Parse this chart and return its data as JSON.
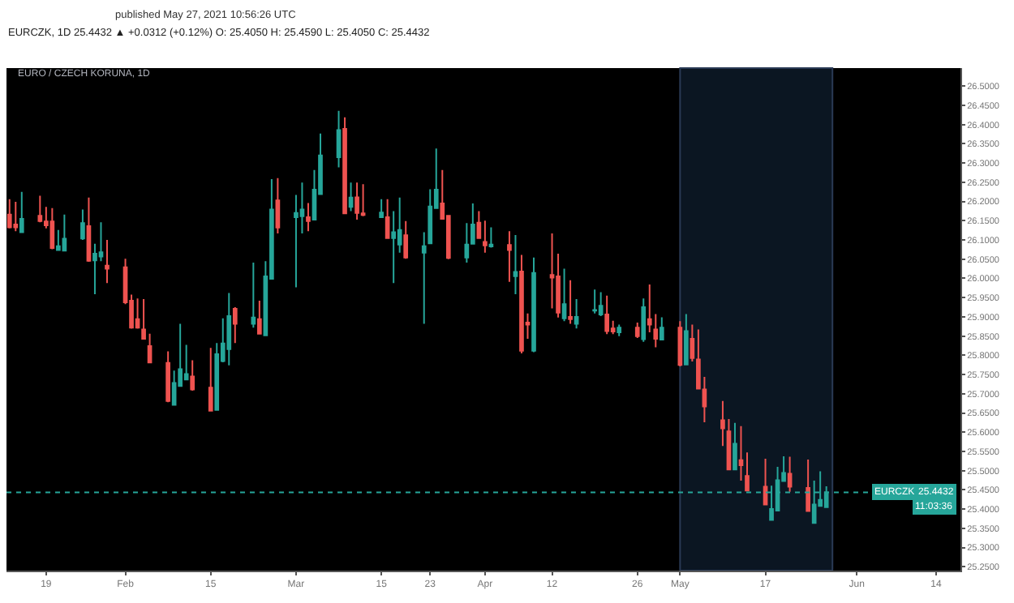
{
  "chart_data": {
    "type": "candlestick",
    "title": "EURO / CZECH KORUNA, 1D",
    "x": [
      "2021-01-13",
      "2021-01-14",
      "2021-01-15",
      "2021-01-18",
      "2021-01-19",
      "2021-01-20",
      "2021-01-21",
      "2021-01-22",
      "2021-01-25",
      "2021-01-26",
      "2021-01-27",
      "2021-01-28",
      "2021-01-29",
      "2021-02-01",
      "2021-02-02",
      "2021-02-03",
      "2021-02-04",
      "2021-02-05",
      "2021-02-08",
      "2021-02-09",
      "2021-02-10",
      "2021-02-11",
      "2021-02-12",
      "2021-02-15",
      "2021-02-16",
      "2021-02-17",
      "2021-02-18",
      "2021-02-19",
      "2021-02-22",
      "2021-02-23",
      "2021-02-24",
      "2021-02-25",
      "2021-02-26",
      "2021-03-01",
      "2021-03-02",
      "2021-03-03",
      "2021-03-04",
      "2021-03-05",
      "2021-03-08",
      "2021-03-09",
      "2021-03-10",
      "2021-03-11",
      "2021-03-12",
      "2021-03-15",
      "2021-03-16",
      "2021-03-17",
      "2021-03-18",
      "2021-03-19",
      "2021-03-22",
      "2021-03-23",
      "2021-03-24",
      "2021-03-25",
      "2021-03-26",
      "2021-03-29",
      "2021-03-30",
      "2021-03-31",
      "2021-04-01",
      "2021-04-02",
      "2021-04-05",
      "2021-04-06",
      "2021-04-07",
      "2021-04-08",
      "2021-04-09",
      "2021-04-12",
      "2021-04-13",
      "2021-04-14",
      "2021-04-15",
      "2021-04-16",
      "2021-04-19",
      "2021-04-20",
      "2021-04-21",
      "2021-04-22",
      "2021-04-23",
      "2021-04-26",
      "2021-04-27",
      "2021-04-28",
      "2021-04-29",
      "2021-04-30",
      "2021-05-03",
      "2021-05-04",
      "2021-05-05",
      "2021-05-06",
      "2021-05-07",
      "2021-05-10",
      "2021-05-11",
      "2021-05-12",
      "2021-05-13",
      "2021-05-14",
      "2021-05-17",
      "2021-05-18",
      "2021-05-19",
      "2021-05-20",
      "2021-05-21",
      "2021-05-24",
      "2021-05-25",
      "2021-05-26",
      "2021-05-27"
    ],
    "ohlc": [
      [
        26.166,
        26.206,
        26.13,
        26.133
      ],
      [
        26.14,
        26.199,
        26.123,
        26.133
      ],
      [
        26.12,
        26.225,
        26.12,
        26.155
      ],
      [
        26.163,
        26.215,
        26.146,
        26.149
      ],
      [
        26.148,
        26.186,
        26.13,
        26.138
      ],
      [
        26.148,
        26.183,
        26.076,
        26.079
      ],
      [
        26.074,
        26.126,
        26.074,
        26.084
      ],
      [
        26.072,
        26.166,
        26.072,
        26.103
      ],
      [
        26.104,
        26.179,
        26.1,
        26.144
      ],
      [
        26.136,
        26.21,
        26.043,
        26.046
      ],
      [
        26.047,
        26.09,
        25.959,
        26.064
      ],
      [
        26.057,
        26.146,
        26.045,
        26.068
      ],
      [
        26.033,
        26.1,
        25.988,
        26.025
      ],
      [
        26.029,
        26.051,
        25.933,
        25.938
      ],
      [
        25.942,
        25.958,
        25.869,
        25.872
      ],
      [
        25.894,
        25.948,
        25.869,
        25.872
      ],
      [
        25.867,
        25.946,
        25.843,
        25.843
      ],
      [
        25.824,
        25.856,
        25.781,
        25.781
      ],
      [
        25.78,
        25.81,
        25.678,
        25.681
      ],
      [
        25.671,
        25.76,
        25.671,
        25.728
      ],
      [
        25.72,
        25.882,
        25.72,
        25.764
      ],
      [
        25.737,
        25.827,
        25.735,
        25.751
      ],
      [
        25.745,
        25.787,
        25.708,
        25.711
      ],
      [
        25.716,
        25.819,
        25.656,
        25.656
      ],
      [
        25.658,
        25.832,
        25.656,
        25.803
      ],
      [
        25.785,
        25.896,
        25.782,
        25.831
      ],
      [
        25.816,
        25.962,
        25.774,
        25.902
      ],
      [
        25.921,
        25.925,
        25.832,
        25.882
      ],
      [
        25.882,
        26.041,
        25.872,
        25.898
      ],
      [
        25.894,
        25.942,
        25.856,
        25.856
      ],
      [
        25.852,
        26.045,
        25.852,
        26.005
      ],
      [
        25.999,
        26.258,
        25.999,
        26.179
      ],
      [
        26.203,
        26.261,
        26.117,
        26.132
      ],
      [
        26.159,
        26.217,
        25.977,
        26.17
      ],
      [
        26.162,
        26.249,
        26.117,
        26.179
      ],
      [
        26.159,
        26.196,
        26.123,
        26.149
      ],
      [
        26.153,
        26.282,
        26.153,
        26.231
      ],
      [
        26.219,
        26.377,
        26.219,
        26.32
      ],
      [
        26.315,
        26.436,
        26.289,
        26.386
      ],
      [
        26.389,
        26.419,
        26.169,
        26.169
      ],
      [
        26.186,
        26.249,
        26.175,
        26.21
      ],
      [
        26.211,
        26.249,
        26.153,
        26.17
      ],
      [
        26.169,
        26.245,
        26.162,
        26.165
      ],
      [
        26.159,
        26.206,
        26.159,
        26.171
      ],
      [
        26.159,
        26.206,
        26.103,
        26.105
      ],
      [
        26.105,
        26.175,
        25.988,
        26.12
      ],
      [
        26.088,
        26.21,
        26.067,
        26.126
      ],
      [
        26.112,
        26.149,
        26.051,
        26.054
      ],
      [
        26.067,
        26.12,
        25.882,
        26.084
      ],
      [
        26.091,
        26.232,
        26.091,
        26.187
      ],
      [
        26.183,
        26.338,
        26.183,
        26.231
      ],
      [
        26.195,
        26.282,
        26.153,
        26.155
      ],
      [
        26.163,
        26.163,
        26.05,
        26.053
      ],
      [
        26.054,
        26.144,
        26.041,
        26.088
      ],
      [
        26.09,
        26.195,
        26.09,
        26.14
      ],
      [
        26.145,
        26.175,
        26.104,
        26.105
      ],
      [
        26.095,
        26.15,
        26.067,
        26.086
      ],
      [
        26.083,
        26.133,
        26.08,
        26.088
      ],
      [
        26.087,
        26.123,
        25.991,
        26.074
      ],
      [
        26.006,
        26.113,
        25.959,
        26.017
      ],
      [
        26.018,
        26.061,
        25.805,
        25.812
      ],
      [
        25.885,
        25.909,
        25.843,
        25.88
      ],
      [
        25.812,
        26.054,
        25.808,
        26.014
      ],
      [
        26.009,
        26.117,
        25.922,
        26.002
      ],
      [
        26.005,
        26.064,
        25.898,
        25.911
      ],
      [
        25.896,
        26.025,
        25.889,
        25.933
      ],
      [
        25.9,
        25.995,
        25.882,
        25.894
      ],
      [
        25.882,
        25.946,
        25.87,
        25.9
      ],
      [
        25.916,
        25.971,
        25.909,
        25.918
      ],
      [
        25.906,
        25.964,
        25.902,
        25.929
      ],
      [
        25.906,
        25.955,
        25.855,
        25.863
      ],
      [
        25.87,
        25.89,
        25.855,
        25.862
      ],
      [
        25.86,
        25.88,
        25.85,
        25.872
      ],
      [
        25.872,
        25.885,
        25.845,
        25.85
      ],
      [
        25.842,
        25.948,
        25.835,
        25.925
      ],
      [
        25.894,
        25.984,
        25.86,
        25.88
      ],
      [
        25.867,
        25.907,
        25.821,
        25.843
      ],
      [
        25.841,
        25.899,
        25.841,
        25.872
      ],
      [
        25.872,
        25.889,
        25.771,
        25.775
      ],
      [
        25.776,
        25.907,
        25.776,
        25.863
      ],
      [
        25.843,
        25.88,
        25.784,
        25.793
      ],
      [
        25.789,
        25.867,
        25.713,
        25.713
      ],
      [
        25.711,
        25.744,
        25.626,
        25.667
      ],
      [
        25.631,
        25.681,
        25.564,
        25.61
      ],
      [
        25.602,
        25.634,
        25.503,
        25.503
      ],
      [
        25.503,
        25.624,
        25.503,
        25.57
      ],
      [
        25.527,
        25.616,
        25.474,
        25.514
      ],
      [
        25.486,
        25.547,
        25.448,
        25.448
      ],
      [
        25.458,
        25.531,
        25.412,
        25.412
      ],
      [
        25.372,
        25.461,
        25.372,
        25.4
      ],
      [
        25.396,
        25.51,
        25.396,
        25.475
      ],
      [
        25.473,
        25.537,
        25.473,
        25.494
      ],
      [
        25.492,
        25.536,
        25.445,
        25.458
      ],
      [
        25.455,
        25.529,
        25.395,
        25.395
      ],
      [
        25.364,
        25.474,
        25.364,
        25.412
      ],
      [
        25.408,
        25.498,
        25.408,
        25.424
      ],
      [
        25.405,
        25.459,
        25.405,
        25.4432
      ]
    ],
    "colors": [
      "#ef5350",
      "#ef5350",
      "#26a69a",
      "#ef5350",
      "#ef5350",
      "#ef5350",
      "#26a69a",
      "#26a69a",
      "#26a69a",
      "#ef5350",
      "#26a69a",
      "#26a69a",
      "#ef5350",
      "#ef5350",
      "#ef5350",
      "#ef5350",
      "#ef5350",
      "#ef5350",
      "#ef5350",
      "#26a69a",
      "#26a69a",
      "#26a69a",
      "#ef5350",
      "#ef5350",
      "#26a69a",
      "#26a69a",
      "#26a69a",
      "#ef5350",
      "#26a69a",
      "#ef5350",
      "#26a69a",
      "#26a69a",
      "#ef5350",
      "#26a69a",
      "#26a69a",
      "#ef5350",
      "#26a69a",
      "#26a69a",
      "#26a69a",
      "#ef5350",
      "#26a69a",
      "#ef5350",
      "#ef5350",
      "#26a69a",
      "#ef5350",
      "#26a69a",
      "#26a69a",
      "#ef5350",
      "#26a69a",
      "#26a69a",
      "#26a69a",
      "#ef5350",
      "#ef5350",
      "#26a69a",
      "#26a69a",
      "#ef5350",
      "#ef5350",
      "#26a69a",
      "#ef5350",
      "#26a69a",
      "#ef5350",
      "#ef5350",
      "#26a69a",
      "#ef5350",
      "#ef5350",
      "#26a69a",
      "#ef5350",
      "#26a69a",
      "#26a69a",
      "#26a69a",
      "#ef5350",
      "#ef5350",
      "#26a69a",
      "#ef5350",
      "#26a69a",
      "#ef5350",
      "#ef5350",
      "#26a69a",
      "#ef5350",
      "#26a69a",
      "#ef5350",
      "#ef5350",
      "#ef5350",
      "#ef5350",
      "#ef5350",
      "#26a69a",
      "#ef5350",
      "#ef5350",
      "#ef5350",
      "#26a69a",
      "#26a69a",
      "#26a69a",
      "#ef5350",
      "#ef5350",
      "#26a69a",
      "#26a69a",
      "#26a69a"
    ],
    "xlim": [
      "2021-01-12T12:00",
      "2021-06-18"
    ],
    "xticks": [
      {
        "value": "2021-01-19",
        "label": "19"
      },
      {
        "value": "2021-02-01",
        "label": "Feb"
      },
      {
        "value": "2021-02-15",
        "label": "15"
      },
      {
        "value": "2021-03-01",
        "label": "Mar"
      },
      {
        "value": "2021-03-15",
        "label": "15"
      },
      {
        "value": "2021-03-23",
        "label": "23"
      },
      {
        "value": "2021-04-01",
        "label": "Apr"
      },
      {
        "value": "2021-04-12",
        "label": "12"
      },
      {
        "value": "2021-04-26",
        "label": "26"
      },
      {
        "value": "2021-05-03",
        "label": "May"
      },
      {
        "value": "2021-05-17",
        "label": "17"
      },
      {
        "value": "2021-06-01",
        "label": "Jun"
      },
      {
        "value": "2021-06-14",
        "label": "14"
      }
    ],
    "ylim": [
      25.24,
      26.547
    ],
    "yticks": [
      {
        "value": 26.5,
        "label": "26.5000"
      },
      {
        "value": 26.45,
        "label": "26.4500"
      },
      {
        "value": 26.4,
        "label": "26.4000"
      },
      {
        "value": 26.35,
        "label": "26.3500"
      },
      {
        "value": 26.3,
        "label": "26.3000"
      },
      {
        "value": 26.25,
        "label": "26.2500"
      },
      {
        "value": 26.2,
        "label": "26.2000"
      },
      {
        "value": 26.15,
        "label": "26.1500"
      },
      {
        "value": 26.1,
        "label": "26.1000"
      },
      {
        "value": 26.05,
        "label": "26.0500"
      },
      {
        "value": 26.0,
        "label": "26.0000"
      },
      {
        "value": 25.95,
        "label": "25.9500"
      },
      {
        "value": 25.9,
        "label": "25.9000"
      },
      {
        "value": 25.85,
        "label": "25.8500"
      },
      {
        "value": 25.8,
        "label": "25.8000"
      },
      {
        "value": 25.75,
        "label": "25.7500"
      },
      {
        "value": 25.7,
        "label": "25.7000"
      },
      {
        "value": 25.65,
        "label": "25.6500"
      },
      {
        "value": 25.6,
        "label": "25.6000"
      },
      {
        "value": 25.55,
        "label": "25.5500"
      },
      {
        "value": 25.5,
        "label": "25.5000"
      },
      {
        "value": 25.45,
        "label": "25.4500"
      },
      {
        "value": 25.4,
        "label": "25.4000"
      },
      {
        "value": 25.35,
        "label": "25.3500"
      },
      {
        "value": 25.3,
        "label": "25.3000"
      },
      {
        "value": 25.25,
        "label": "25.2500"
      }
    ],
    "ref_lines": [
      {
        "axis": "y",
        "value": 25.4432,
        "label": "25.4432",
        "color": "#26a69a",
        "line_style": "dotted"
      }
    ],
    "bands": [
      {
        "axis": "x",
        "from": "2021-05-03",
        "to": "2021-05-28",
        "color": "#0b1622"
      }
    ],
    "annotations": [
      "published May 27, 2021 10:56:26 UTC",
      "EURCZK, 1D 25.4432 ▲ +0.0312 (+0.12%) O: 25.4050 H: 25.4590 L: 25.4050 C: 25.4432",
      {
        "text": "EURCZK",
        "y": 25.4432
      },
      "11:03:36"
    ]
  }
}
